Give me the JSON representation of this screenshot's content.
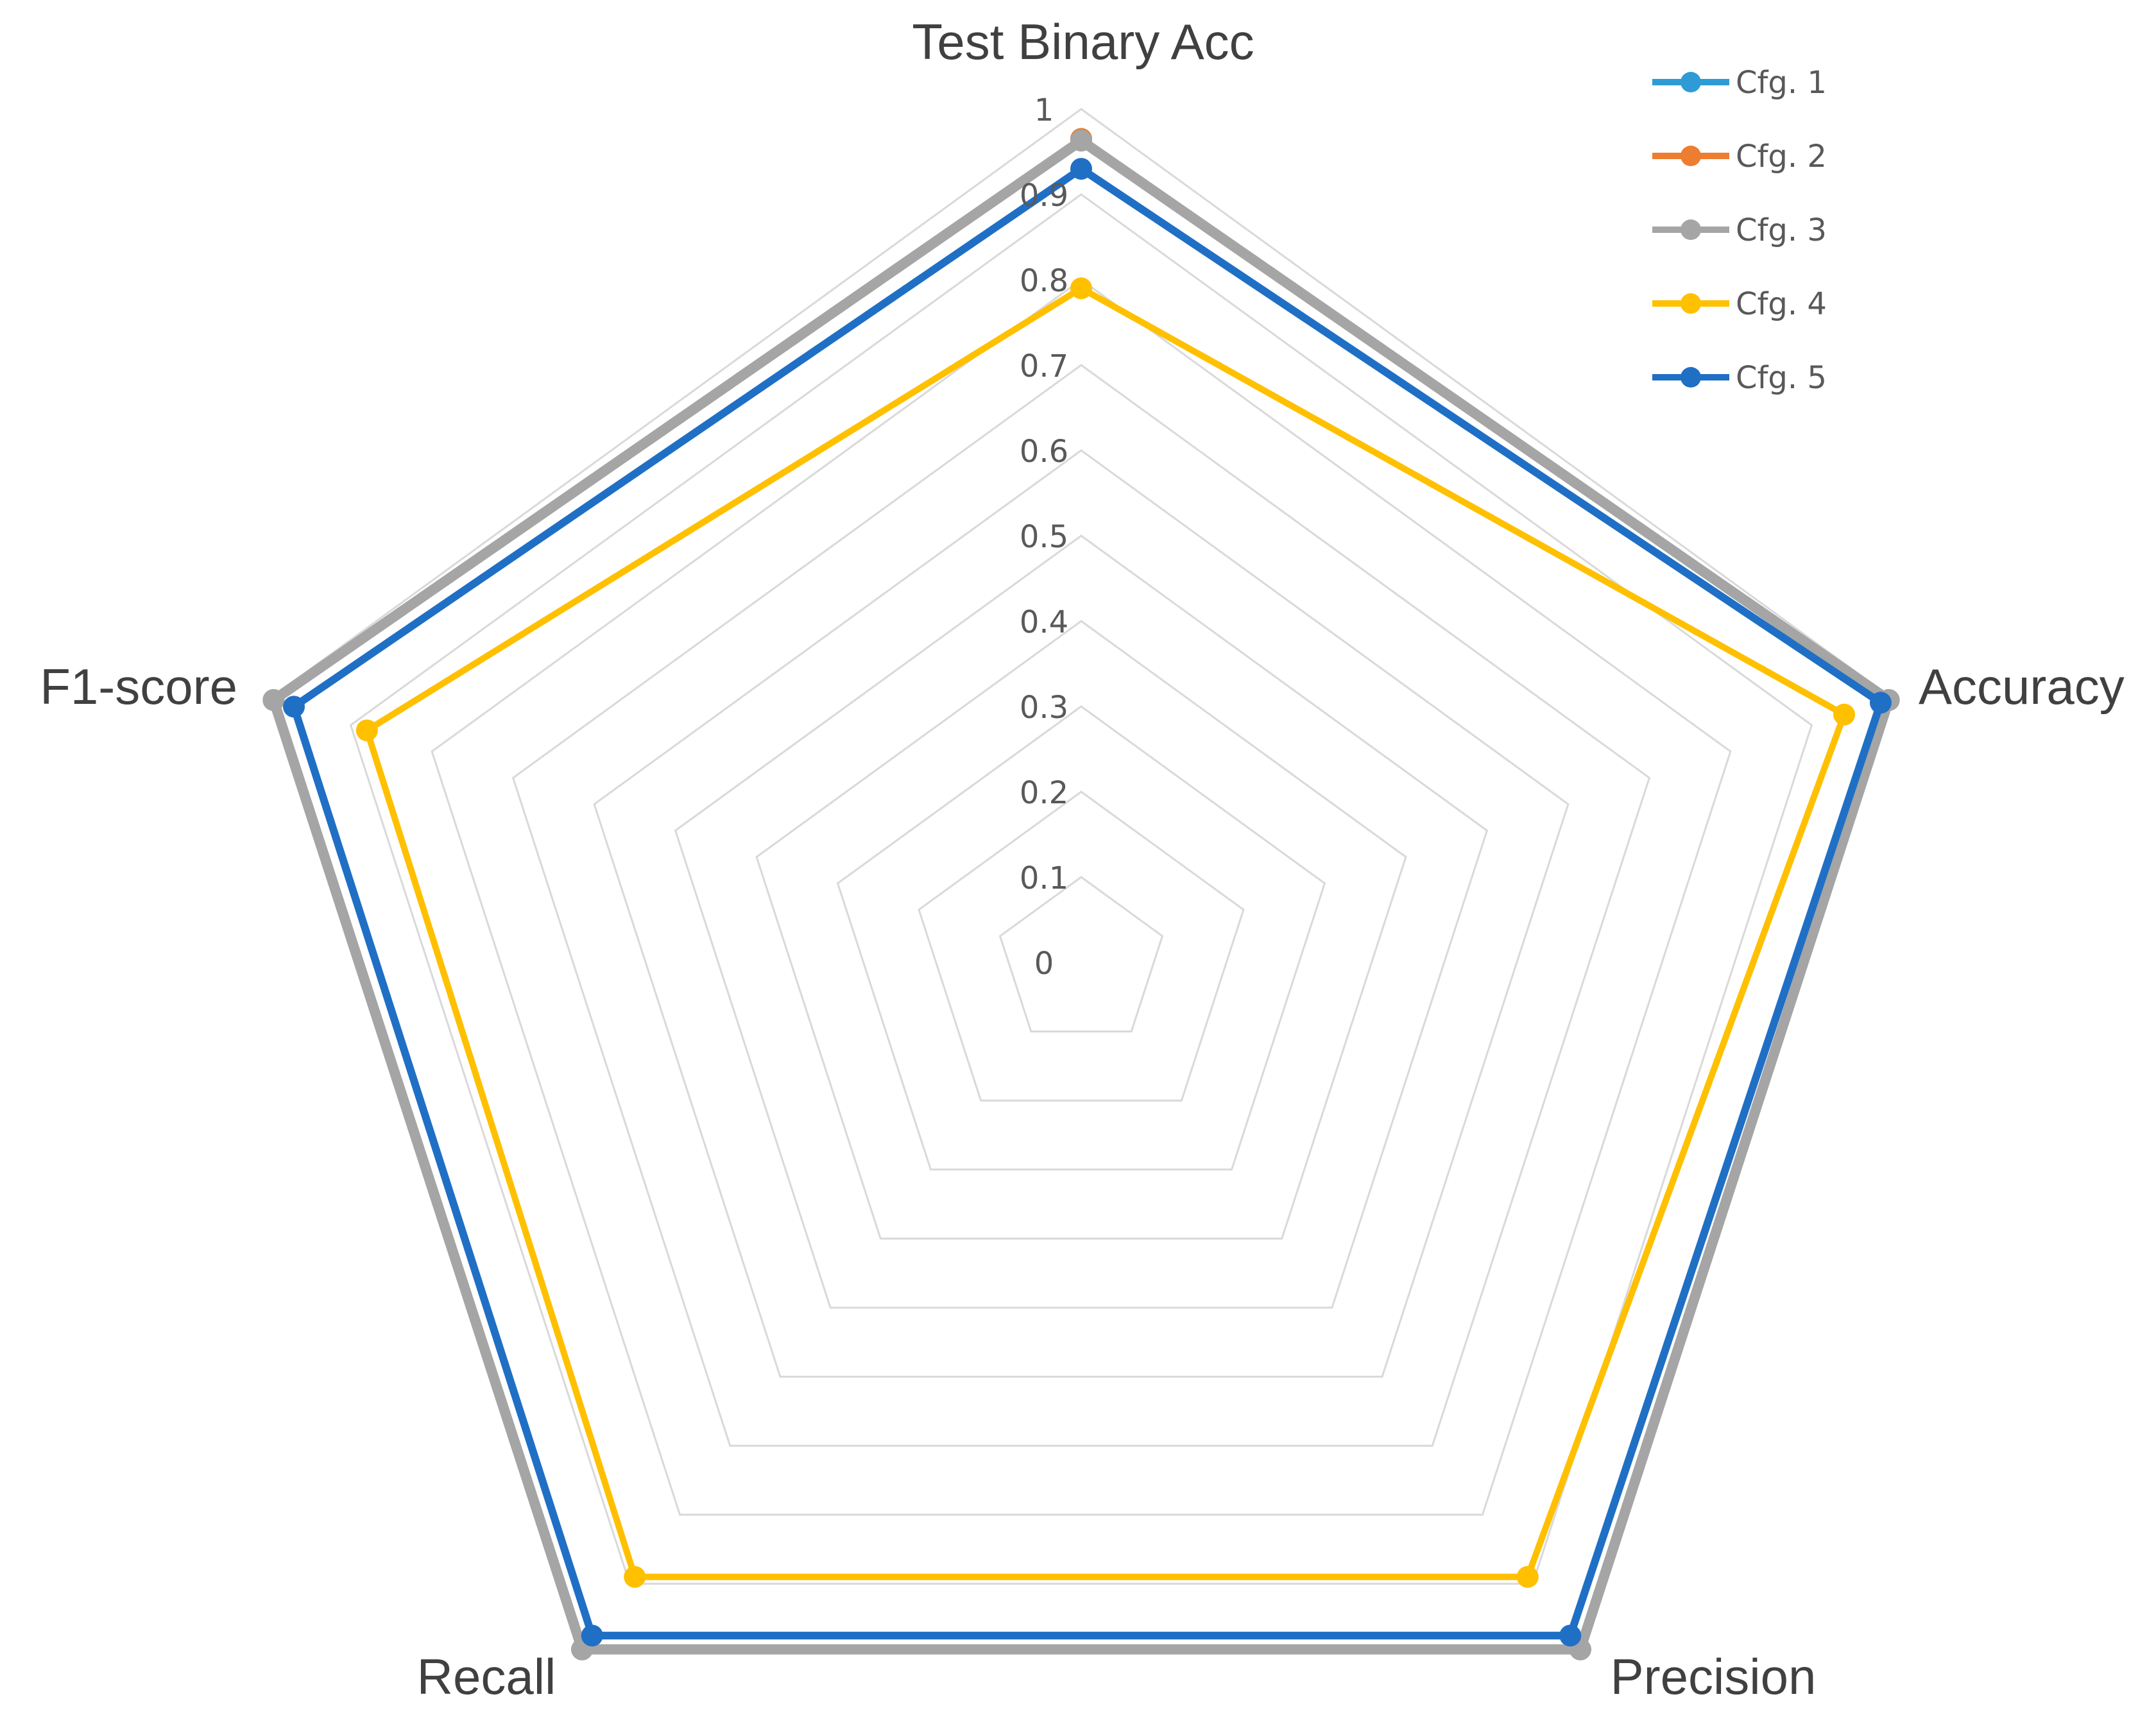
{
  "chart_data": {
    "type": "radar",
    "axes": [
      "Test Binary Acc",
      "Accuracy",
      "Precision",
      "Recall",
      "F1-score"
    ],
    "ticks": [
      "0",
      "0.1",
      "0.2",
      "0.3",
      "0.4",
      "0.5",
      "0.6",
      "0.7",
      "0.8",
      "0.9",
      "1"
    ],
    "rlim": [
      0,
      1
    ],
    "grid": true,
    "legend_position": "top-right",
    "series": [
      {
        "name": "Cfg. 1",
        "color": "#2e9bd6",
        "values": [
          0.965,
          0.995,
          0.995,
          0.995,
          0.995
        ]
      },
      {
        "name": "Cfg. 2",
        "color": "#ed7d31",
        "values": [
          0.965,
          0.995,
          0.995,
          0.995,
          0.995
        ]
      },
      {
        "name": "Cfg. 3",
        "color": "#a5a5a5",
        "values": [
          0.963,
          0.995,
          0.995,
          0.995,
          0.995
        ]
      },
      {
        "name": "Cfg. 4",
        "color": "#ffc000",
        "values": [
          0.79,
          0.94,
          0.89,
          0.89,
          0.88
        ]
      },
      {
        "name": "Cfg. 5",
        "color": "#1f6fc5",
        "values": [
          0.93,
          0.985,
          0.975,
          0.975,
          0.97
        ]
      }
    ]
  }
}
